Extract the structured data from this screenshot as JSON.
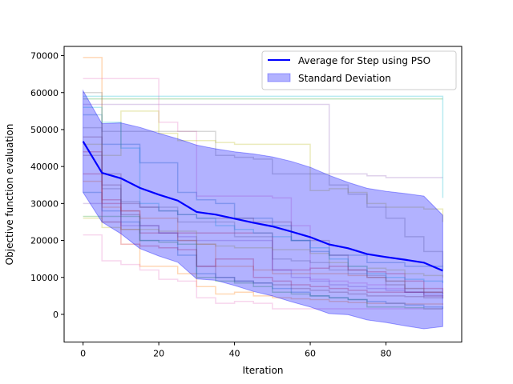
{
  "chart_data": {
    "type": "line",
    "title": "",
    "xlabel": "Iteration",
    "ylabel": "Objective function evaluation",
    "xlim": [
      -5,
      100
    ],
    "ylim": [
      -7500,
      72500
    ],
    "xticks": [
      0,
      20,
      40,
      60,
      80
    ],
    "yticks": [
      0,
      10000,
      20000,
      30000,
      40000,
      50000,
      60000,
      70000
    ],
    "grid": false,
    "legend_position": "upper right",
    "legend": {
      "mean_label": "Average for Step using PSO",
      "band_label": "Standard Deviation"
    },
    "x": [
      0,
      5,
      10,
      15,
      20,
      25,
      30,
      35,
      40,
      45,
      50,
      55,
      60,
      65,
      70,
      75,
      80,
      85,
      90,
      95
    ],
    "mean": {
      "name": "Average for Step using PSO",
      "color": "#0000ff",
      "values": [
        46800,
        38300,
        36800,
        34200,
        32400,
        30800,
        27700,
        27000,
        25900,
        24800,
        23800,
        22400,
        20900,
        18900,
        17900,
        16300,
        15500,
        14800,
        14000,
        11800
      ]
    },
    "std_band": {
      "name": "Standard Deviation",
      "color": "#0000ff",
      "alpha": 0.3,
      "upper": [
        60500,
        51600,
        51800,
        50600,
        49000,
        47500,
        45800,
        44800,
        44000,
        43400,
        42600,
        41400,
        39800,
        37600,
        35700,
        34100,
        33300,
        32700,
        32000,
        26800
      ],
      "lower": [
        33000,
        25000,
        21800,
        17800,
        15800,
        14100,
        9600,
        9200,
        7800,
        6200,
        5000,
        3400,
        2000,
        200,
        -100,
        -1500,
        -2200,
        -3100,
        -3900,
        -3300
      ]
    },
    "runs": [
      {
        "color": "#1f77b4",
        "values": [
          54000,
          46000,
          46000,
          41000,
          41000,
          33000,
          31000,
          30000,
          26000,
          26000,
          24000,
          20000,
          17000,
          16000,
          16000,
          14000,
          14000,
          13000,
          13000,
          12000
        ]
      },
      {
        "color": "#ff7f0e",
        "values": [
          69500,
          25000,
          23000,
          13000,
          13000,
          11000,
          7500,
          5500,
          6000,
          5000,
          4500,
          4200,
          4000,
          3500,
          3200,
          3000,
          3000,
          2800,
          2800,
          2600
        ]
      },
      {
        "color": "#2ca02c",
        "values": [
          58300,
          58300,
          58300,
          58300,
          58300,
          58300,
          58300,
          58300,
          58300,
          58300,
          58300,
          58300,
          58300,
          58300,
          58300,
          58300,
          58300,
          58300,
          58300,
          58300
        ]
      },
      {
        "color": "#d62728",
        "values": [
          44000,
          31000,
          28000,
          22000,
          22000,
          22000,
          22000,
          22000,
          22000,
          22000,
          12000,
          12000,
          12500,
          13000,
          12000,
          11500,
          11000,
          9000,
          7000,
          6200
        ]
      },
      {
        "color": "#9467bd",
        "values": [
          56800,
          56800,
          56800,
          56800,
          56800,
          56800,
          56800,
          56800,
          56800,
          56800,
          56800,
          56800,
          56800,
          38000,
          38000,
          37500,
          37000,
          37000,
          37000,
          37000
        ]
      },
      {
        "color": "#8c564b",
        "values": [
          43000,
          35000,
          27000,
          24000,
          22000,
          20000,
          13000,
          10000,
          9000,
          8500,
          8000,
          7000,
          6500,
          6000,
          5500,
          5000,
          5000,
          4800,
          4500,
          4200
        ]
      },
      {
        "color": "#e377c2",
        "values": [
          63800,
          63800,
          63800,
          63800,
          52000,
          49500,
          32000,
          32000,
          32000,
          32000,
          31500,
          24000,
          9500,
          9000,
          8500,
          8000,
          7000,
          6000,
          5000,
          4500
        ]
      },
      {
        "color": "#7f7f7f",
        "values": [
          50500,
          49500,
          49500,
          49500,
          49500,
          49500,
          49500,
          43000,
          42500,
          42000,
          38000,
          38000,
          38000,
          35000,
          32500,
          29000,
          26000,
          21000,
          17000,
          13000
        ]
      },
      {
        "color": "#bcbd22",
        "values": [
          46000,
          43000,
          55000,
          55000,
          49000,
          47000,
          47000,
          46500,
          46000,
          46000,
          46000,
          46000,
          33500,
          34000,
          33000,
          30000,
          29000,
          29000,
          28500,
          25000
        ]
      },
      {
        "color": "#17becf",
        "values": [
          59000,
          59000,
          59000,
          59000,
          59000,
          59000,
          59000,
          59000,
          59000,
          59000,
          59000,
          59000,
          59000,
          59000,
          59000,
          59000,
          59000,
          59000,
          59000,
          31500
        ]
      },
      {
        "color": "#1f77b4",
        "values": [
          33000,
          28000,
          25000,
          20000,
          20000,
          16000,
          11000,
          10000,
          9000,
          8500,
          7000,
          6000,
          5000,
          4500,
          4000,
          3500,
          3000,
          2500,
          2000,
          1500
        ]
      },
      {
        "color": "#ff7f0e",
        "values": [
          36000,
          29000,
          28000,
          26000,
          26000,
          20000,
          19000,
          13000,
          13000,
          12000,
          11000,
          11000,
          11000,
          11000,
          10500,
          10000,
          9000,
          7000,
          6000,
          5500
        ]
      },
      {
        "color": "#2ca02c",
        "values": [
          26500,
          26500,
          26500,
          20000,
          19500,
          19000,
          10000,
          9000,
          8500,
          7500,
          6000,
          5500,
          5000,
          4500,
          4000,
          2000,
          2000,
          1800,
          1500,
          1500
        ]
      },
      {
        "color": "#d62728",
        "values": [
          38000,
          30000,
          19000,
          18500,
          18000,
          17500,
          13000,
          15000,
          15000,
          10000,
          9000,
          8000,
          7500,
          7000,
          6500,
          6000,
          6000,
          6000,
          6000,
          6000
        ]
      },
      {
        "color": "#9467bd",
        "values": [
          30000,
          25000,
          24000,
          24000,
          22000,
          21000,
          20000,
          20000,
          20000,
          20000,
          12000,
          10000,
          9000,
          8000,
          7500,
          7000,
          6500,
          6000,
          5500,
          5000
        ]
      },
      {
        "color": "#8c564b",
        "values": [
          48000,
          38000,
          30000,
          29000,
          28000,
          27000,
          26000,
          26000,
          26000,
          25000,
          25000,
          20000,
          20000,
          16000,
          12000,
          10000,
          8000,
          6000,
          5000,
          4500
        ]
      },
      {
        "color": "#e377c2",
        "values": [
          21500,
          14500,
          13500,
          12000,
          9500,
          9000,
          4500,
          3000,
          3500,
          3000,
          1500,
          1500,
          1500,
          1500,
          1500,
          1500,
          1500,
          1500,
          1500,
          1500
        ]
      },
      {
        "color": "#7f7f7f",
        "values": [
          60000,
          34000,
          30500,
          29000,
          29000,
          25000,
          25000,
          25000,
          21000,
          21000,
          15000,
          14500,
          14000,
          12000,
          11000,
          10500,
          9000,
          7000,
          6000,
          5500
        ]
      },
      {
        "color": "#bcbd22",
        "values": [
          26000,
          23500,
          23000,
          23000,
          22500,
          22500,
          19000,
          18500,
          18000,
          18000,
          17500,
          17500,
          16500,
          14000,
          13000,
          12500,
          12000,
          11000,
          10500,
          10000
        ]
      },
      {
        "color": "#17becf",
        "values": [
          56000,
          52000,
          45000,
          30000,
          28000,
          27000,
          26000,
          24000,
          23000,
          22000,
          21000,
          20000,
          18000,
          15000,
          13000,
          11000,
          10000,
          9500,
          9000,
          8500
        ]
      }
    ]
  }
}
